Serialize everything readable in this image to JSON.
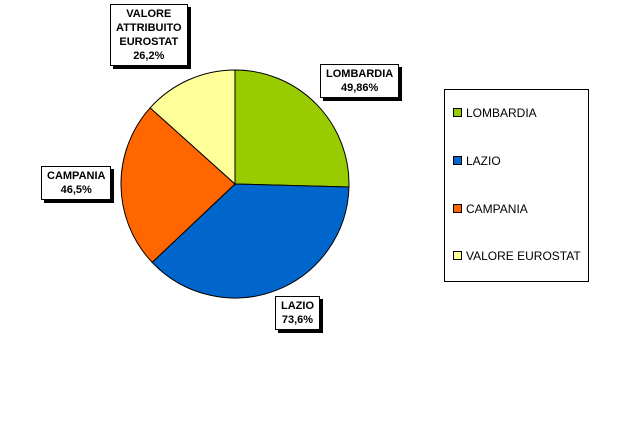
{
  "chart_data": {
    "type": "pie",
    "slices": [
      {
        "category": "LOMBARDIA",
        "label_lines": [
          "LOMBARDIA",
          "49,86%"
        ],
        "value": 49.86,
        "color": "#99CC00"
      },
      {
        "category": "LAZIO",
        "label_lines": [
          "LAZIO",
          "73,6%"
        ],
        "value": 73.6,
        "color": "#0066CC"
      },
      {
        "category": "CAMPANIA",
        "label_lines": [
          "CAMPANIA",
          "46,5%"
        ],
        "value": 46.5,
        "color": "#FF6600"
      },
      {
        "category": "VALORE EUROSTAT",
        "label_lines": [
          "VALORE",
          "ATTRIBUITO",
          "EUROSTAT",
          "26,2%"
        ],
        "value": 26.2,
        "color": "#FFFF99"
      }
    ],
    "legend": [
      "LOMBARDIA",
      "LAZIO",
      "CAMPANIA",
      "VALORE EUROSTAT"
    ],
    "legend_position": "right"
  }
}
